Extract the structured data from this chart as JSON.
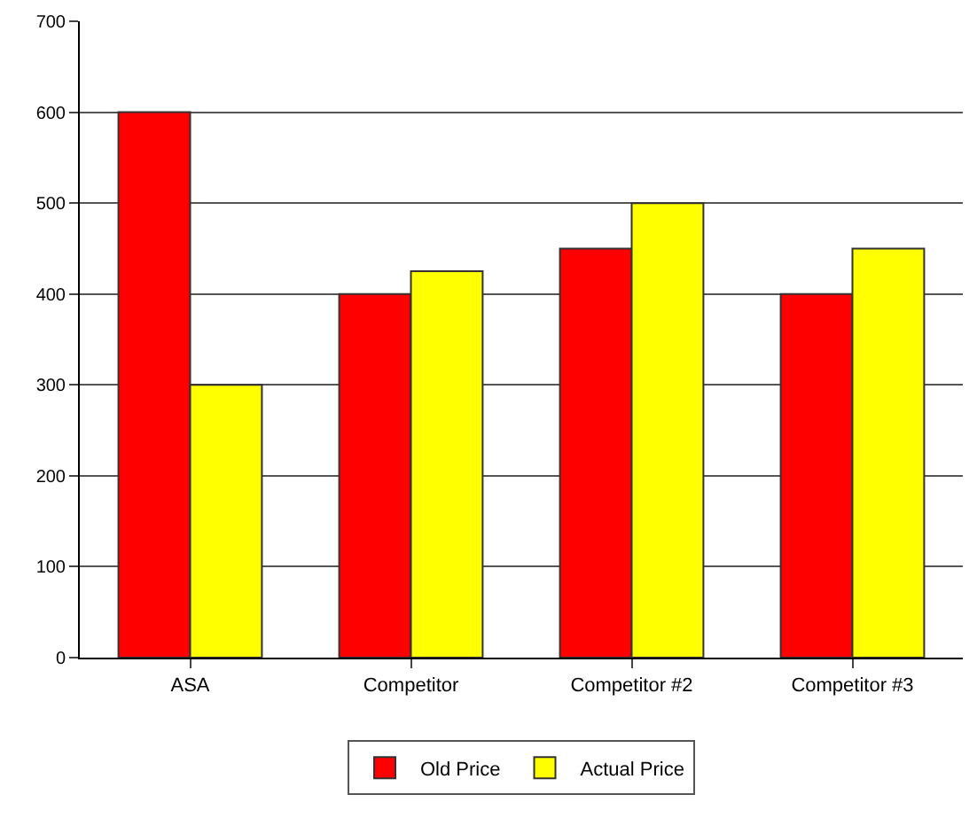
{
  "chart_data": {
    "type": "bar",
    "categories": [
      "ASA",
      "Competitor",
      "Competitor #2",
      "Competitor #3"
    ],
    "series": [
      {
        "name": "Old Price",
        "color": "#ff0000",
        "values": [
          600,
          400,
          450,
          400
        ]
      },
      {
        "name": "Actual Price",
        "color": "#ffff00",
        "values": [
          300,
          425,
          500,
          450
        ]
      }
    ],
    "ylim": [
      0,
      700
    ],
    "yticks": [
      0,
      100,
      200,
      300,
      400,
      500,
      600,
      700
    ],
    "grid": "y",
    "legend": "bottom"
  }
}
